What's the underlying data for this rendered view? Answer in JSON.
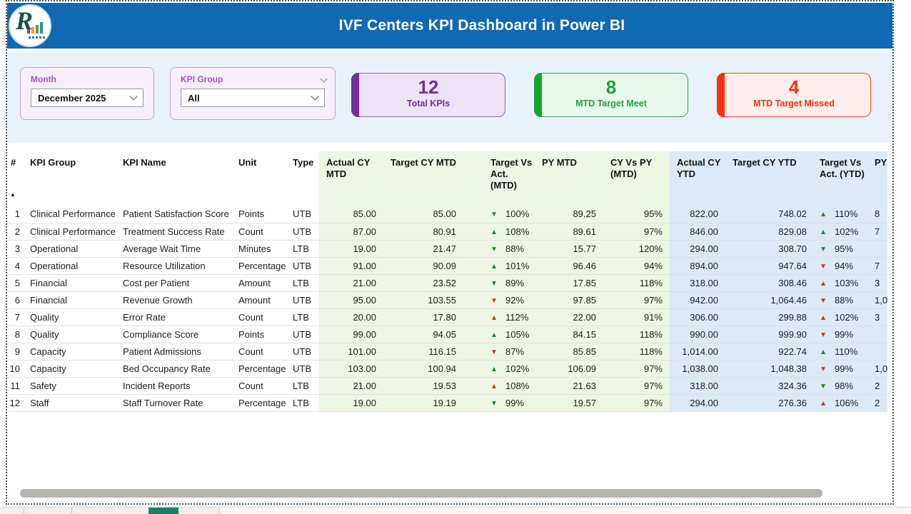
{
  "app": {
    "title": "IVF Centers KPI Dashboard in Power BI",
    "logo_letter": "R"
  },
  "colors": {
    "topbar_bg": "#1169b4",
    "band_bg": "#e9f2fb",
    "purple": "#7030a0",
    "green": "#17a52c",
    "red": "#f4330e",
    "good": "#188a1e",
    "bad": "#e02d12",
    "mtd_zone_tint": "#edf6e2",
    "ytd_zone_tint": "#dce9f7"
  },
  "icons": {
    "dropdown_chevron": "chevron-down",
    "slicer_collapse_chevron": "chevron-down",
    "sort_ascending": "▲",
    "kpi_up": "▲",
    "kpi_down": "▼"
  },
  "filters": [
    {
      "label": "Month",
      "value": "December 2025"
    },
    {
      "label": "KPI Group",
      "value": "All"
    }
  ],
  "cards": [
    {
      "value": "12",
      "label": "Total KPIs",
      "theme": "purple"
    },
    {
      "value": "8",
      "label": "MTD Target Meet",
      "theme": "green"
    },
    {
      "value": "4",
      "label": "MTD Target Missed",
      "theme": "red"
    }
  ],
  "table": {
    "sort_icon": "▲",
    "columns": [
      {
        "key": "num",
        "label": "#",
        "zone": "plain"
      },
      {
        "key": "group",
        "label": "KPI Group",
        "zone": "plain"
      },
      {
        "key": "name",
        "label": "KPI Name",
        "zone": "plain"
      },
      {
        "key": "unit",
        "label": "Unit",
        "zone": "plain"
      },
      {
        "key": "type",
        "label": "Type",
        "zone": "plain"
      },
      {
        "key": "actual_mtd",
        "label": "Actual CY MTD",
        "zone": "green"
      },
      {
        "key": "target_mtd",
        "label": "Target CY MTD",
        "zone": "green"
      },
      {
        "key": "tva_mtd",
        "label": "Target Vs Act. (MTD)",
        "zone": "green",
        "icon": true
      },
      {
        "key": "py_mtd",
        "label": "PY MTD",
        "zone": "green"
      },
      {
        "key": "cy_py_mtd",
        "label": "CY Vs PY (MTD)",
        "zone": "green"
      },
      {
        "key": "actual_ytd",
        "label": "Actual CY YTD",
        "zone": "blue"
      },
      {
        "key": "target_ytd",
        "label": "Target CY YTD",
        "zone": "blue"
      },
      {
        "key": "tva_ytd",
        "label": "Target Vs Act. (YTD)",
        "zone": "blue",
        "icon": true
      },
      {
        "key": "py_ytd",
        "label": "PY",
        "zone": "blue"
      }
    ],
    "rows": [
      {
        "num": "1",
        "group": "Clinical Performance",
        "name": "Patient Satisfaction Score",
        "unit": "Points",
        "type": "UTB",
        "actual_mtd": "85.00",
        "target_mtd": "85.00",
        "tva_mtd": {
          "dir": "down",
          "tone": "good",
          "value": "100%"
        },
        "py_mtd": "89.25",
        "cy_py_mtd": "95%",
        "actual_ytd": "822.00",
        "target_ytd": "748.02",
        "tva_ytd": {
          "dir": "up",
          "tone": "good",
          "value": "110%"
        },
        "py_ytd": "8"
      },
      {
        "num": "2",
        "group": "Clinical Performance",
        "name": "Treatment Success Rate",
        "unit": "Count",
        "type": "UTB",
        "actual_mtd": "87.00",
        "target_mtd": "80.91",
        "tva_mtd": {
          "dir": "up",
          "tone": "good",
          "value": "108%"
        },
        "py_mtd": "89.61",
        "cy_py_mtd": "97%",
        "actual_ytd": "846.00",
        "target_ytd": "829.08",
        "tva_ytd": {
          "dir": "up",
          "tone": "good",
          "value": "102%"
        },
        "py_ytd": "7"
      },
      {
        "num": "3",
        "group": "Operational",
        "name": "Average Wait Time",
        "unit": "Minutes",
        "type": "LTB",
        "actual_mtd": "19.00",
        "target_mtd": "21.47",
        "tva_mtd": {
          "dir": "down",
          "tone": "good",
          "value": "88%"
        },
        "py_mtd": "15.77",
        "cy_py_mtd": "120%",
        "actual_ytd": "294.00",
        "target_ytd": "308.70",
        "tva_ytd": {
          "dir": "down",
          "tone": "good",
          "value": "95%"
        },
        "py_ytd": ""
      },
      {
        "num": "4",
        "group": "Operational",
        "name": "Resource Utilization",
        "unit": "Percentage",
        "type": "UTB",
        "actual_mtd": "91.00",
        "target_mtd": "90.09",
        "tva_mtd": {
          "dir": "up",
          "tone": "good",
          "value": "101%"
        },
        "py_mtd": "96.46",
        "cy_py_mtd": "94%",
        "actual_ytd": "894.00",
        "target_ytd": "947.64",
        "tva_ytd": {
          "dir": "down",
          "tone": "bad",
          "value": "94%"
        },
        "py_ytd": "7"
      },
      {
        "num": "5",
        "group": "Financial",
        "name": "Cost per Patient",
        "unit": "Amount",
        "type": "LTB",
        "actual_mtd": "21.00",
        "target_mtd": "23.52",
        "tva_mtd": {
          "dir": "down",
          "tone": "good",
          "value": "89%"
        },
        "py_mtd": "17.85",
        "cy_py_mtd": "118%",
        "actual_ytd": "318.00",
        "target_ytd": "308.46",
        "tva_ytd": {
          "dir": "up",
          "tone": "bad",
          "value": "103%"
        },
        "py_ytd": "3"
      },
      {
        "num": "6",
        "group": "Financial",
        "name": "Revenue Growth",
        "unit": "Amount",
        "type": "UTB",
        "actual_mtd": "95.00",
        "target_mtd": "103.55",
        "tva_mtd": {
          "dir": "down",
          "tone": "bad",
          "value": "92%"
        },
        "py_mtd": "97.85",
        "cy_py_mtd": "97%",
        "actual_ytd": "942.00",
        "target_ytd": "1,064.46",
        "tva_ytd": {
          "dir": "down",
          "tone": "bad",
          "value": "88%"
        },
        "py_ytd": "1,0"
      },
      {
        "num": "7",
        "group": "Quality",
        "name": "Error Rate",
        "unit": "Count",
        "type": "LTB",
        "actual_mtd": "20.00",
        "target_mtd": "17.80",
        "tva_mtd": {
          "dir": "up",
          "tone": "bad",
          "value": "112%"
        },
        "py_mtd": "22.00",
        "cy_py_mtd": "91%",
        "actual_ytd": "306.00",
        "target_ytd": "299.88",
        "tva_ytd": {
          "dir": "up",
          "tone": "bad",
          "value": "102%"
        },
        "py_ytd": "3"
      },
      {
        "num": "8",
        "group": "Quality",
        "name": "Compliance Score",
        "unit": "Points",
        "type": "UTB",
        "actual_mtd": "99.00",
        "target_mtd": "94.05",
        "tva_mtd": {
          "dir": "up",
          "tone": "good",
          "value": "105%"
        },
        "py_mtd": "84.15",
        "cy_py_mtd": "118%",
        "actual_ytd": "990.00",
        "target_ytd": "999.90",
        "tva_ytd": {
          "dir": "down",
          "tone": "bad",
          "value": "99%"
        },
        "py_ytd": ""
      },
      {
        "num": "9",
        "group": "Capacity",
        "name": "Patient Admissions",
        "unit": "Count",
        "type": "UTB",
        "actual_mtd": "101.00",
        "target_mtd": "116.15",
        "tva_mtd": {
          "dir": "down",
          "tone": "bad",
          "value": "87%"
        },
        "py_mtd": "85.85",
        "cy_py_mtd": "118%",
        "actual_ytd": "1,014.00",
        "target_ytd": "922.74",
        "tva_ytd": {
          "dir": "up",
          "tone": "good",
          "value": "110%"
        },
        "py_ytd": ""
      },
      {
        "num": "10",
        "group": "Capacity",
        "name": "Bed Occupancy Rate",
        "unit": "Percentage",
        "type": "UTB",
        "actual_mtd": "103.00",
        "target_mtd": "100.94",
        "tva_mtd": {
          "dir": "up",
          "tone": "good",
          "value": "102%"
        },
        "py_mtd": "106.09",
        "cy_py_mtd": "97%",
        "actual_ytd": "1,038.00",
        "target_ytd": "1,048.38",
        "tva_ytd": {
          "dir": "down",
          "tone": "bad",
          "value": "99%"
        },
        "py_ytd": "1,0"
      },
      {
        "num": "11",
        "group": "Safety",
        "name": "Incident Reports",
        "unit": "Count",
        "type": "LTB",
        "actual_mtd": "21.00",
        "target_mtd": "19.53",
        "tva_mtd": {
          "dir": "up",
          "tone": "bad",
          "value": "108%"
        },
        "py_mtd": "21.63",
        "cy_py_mtd": "97%",
        "actual_ytd": "318.00",
        "target_ytd": "324.36",
        "tva_ytd": {
          "dir": "down",
          "tone": "good",
          "value": "98%"
        },
        "py_ytd": "2"
      },
      {
        "num": "12",
        "group": "Staff",
        "name": "Staff Turnover Rate",
        "unit": "Percentage",
        "type": "LTB",
        "actual_mtd": "19.00",
        "target_mtd": "19.19",
        "tva_mtd": {
          "dir": "down",
          "tone": "good",
          "value": "99%"
        },
        "py_mtd": "19.57",
        "cy_py_mtd": "97%",
        "actual_ytd": "294.00",
        "target_ytd": "276.36",
        "tva_ytd": {
          "dir": "up",
          "tone": "bad",
          "value": "106%"
        },
        "py_ytd": "2"
      }
    ]
  }
}
